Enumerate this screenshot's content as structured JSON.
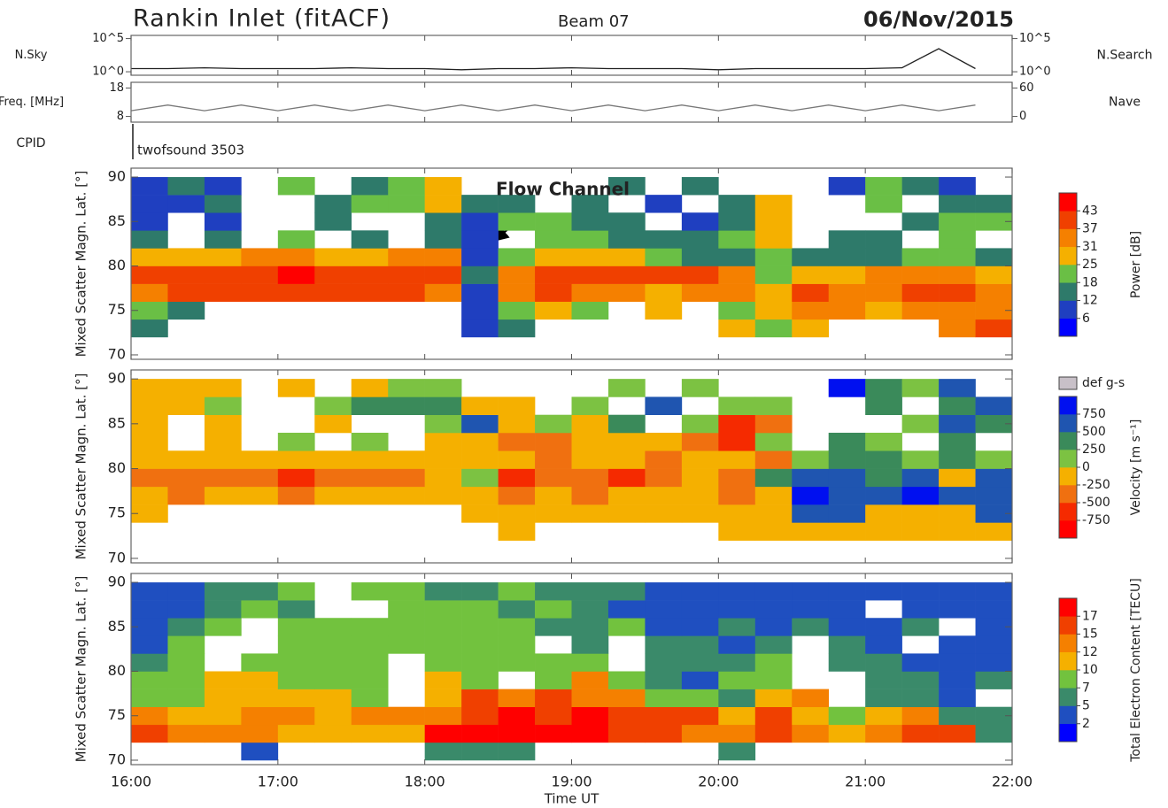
{
  "header": {
    "title": "Rankin Inlet (fitACF)",
    "beam": "Beam 07",
    "date": "06/Nov/2015"
  },
  "cpid": {
    "label": "CPID",
    "program": "twofsound 3503"
  },
  "chart_data": [
    {
      "type": "line",
      "scale": "log",
      "ylabel": "N.Sky",
      "y2label": "N.Search",
      "xlim": [
        16,
        22
      ],
      "ylim": [
        0.3,
        300000
      ],
      "yticks": [
        {
          "value": 100000,
          "label": "10^5"
        },
        {
          "value": 1,
          "label": "10^0"
        }
      ],
      "y2lim": [
        0.3,
        300000
      ],
      "y2ticks": [
        {
          "value": 100000,
          "label": "10^5"
        },
        {
          "value": 1,
          "label": "10^0"
        }
      ],
      "x": [
        16,
        16.25,
        16.5,
        16.75,
        17,
        17.25,
        17.5,
        17.75,
        18,
        18.25,
        18.5,
        18.75,
        19,
        19.25,
        19.5,
        19.75,
        20,
        20.25,
        20.5,
        20.75,
        21,
        21.25,
        21.5,
        21.75
      ],
      "series": [
        {
          "color": "#222222",
          "values": [
            3,
            3,
            4,
            3,
            3,
            3,
            4,
            3,
            3,
            2,
            3,
            3,
            4,
            3,
            3,
            3,
            2,
            3,
            3,
            3,
            3,
            4,
            3000,
            3
          ]
        }
      ]
    },
    {
      "type": "line",
      "ylabel": "Freq. [MHz]",
      "y2label": "Nave",
      "xlim": [
        16,
        22
      ],
      "ylim": [
        6,
        20
      ],
      "yticks": [
        18,
        8
      ],
      "y2lim": [
        -12,
        72
      ],
      "y2ticks": [
        60,
        0
      ],
      "x": [
        16,
        16.25,
        16.5,
        16.75,
        17,
        17.25,
        17.5,
        17.75,
        18,
        18.25,
        18.5,
        18.75,
        19,
        19.25,
        19.5,
        19.75,
        20,
        20.25,
        20.5,
        20.75,
        21,
        21.25,
        21.5,
        21.75
      ],
      "series": [
        {
          "color": "#777777",
          "values": [
            10,
            12,
            10,
            12,
            10,
            12,
            10,
            12,
            10,
            12,
            10,
            12,
            10,
            12,
            10,
            12,
            10,
            12,
            10,
            12,
            10,
            12,
            10,
            12
          ]
        }
      ]
    },
    {
      "type": "heatmap",
      "ylabel": "Mixed Scatter Magn. Lat. [°]",
      "annotation": "Flow Channel",
      "xlim": [
        16,
        22
      ],
      "ylim": [
        69.5,
        91
      ],
      "yticks": [
        70,
        75,
        80,
        85,
        90
      ],
      "x": [
        16,
        16.25,
        16.5,
        16.75,
        17,
        17.25,
        17.5,
        17.75,
        18,
        18.25,
        18.5,
        18.75,
        19,
        19.25,
        19.5,
        19.75,
        20,
        20.25,
        20.5,
        20.75,
        21,
        21.25,
        21.5,
        21.75
      ],
      "y": [
        70,
        72,
        74,
        76,
        78,
        80,
        82,
        84,
        86,
        88
      ],
      "z": [
        [
          null,
          null,
          null,
          null,
          null,
          null,
          null,
          null,
          null,
          null,
          null,
          null,
          null,
          null,
          null,
          null,
          null,
          null,
          null,
          null,
          null,
          null,
          null,
          null
        ],
        [
          12,
          null,
          null,
          null,
          null,
          null,
          null,
          null,
          null,
          8,
          12,
          null,
          null,
          null,
          null,
          null,
          25,
          18,
          25,
          null,
          null,
          null,
          31,
          37
        ],
        [
          18,
          12,
          null,
          null,
          null,
          null,
          null,
          null,
          null,
          8,
          18,
          25,
          18,
          null,
          25,
          null,
          18,
          25,
          31,
          31,
          25,
          31,
          31,
          31
        ],
        [
          31,
          37,
          37,
          37,
          37,
          37,
          37,
          37,
          31,
          8,
          31,
          37,
          31,
          31,
          25,
          31,
          31,
          25,
          37,
          31,
          31,
          37,
          37,
          31
        ],
        [
          37,
          37,
          37,
          37,
          43,
          37,
          37,
          37,
          37,
          12,
          31,
          37,
          37,
          37,
          37,
          37,
          31,
          18,
          25,
          25,
          31,
          31,
          31,
          25
        ],
        [
          25,
          25,
          25,
          31,
          31,
          25,
          25,
          31,
          31,
          6,
          18,
          25,
          25,
          25,
          18,
          12,
          12,
          18,
          12,
          12,
          12,
          18,
          18,
          12
        ],
        [
          12,
          null,
          12,
          null,
          18,
          null,
          12,
          null,
          12,
          6,
          null,
          18,
          18,
          12,
          12,
          12,
          18,
          25,
          null,
          12,
          12,
          null,
          18,
          null
        ],
        [
          6,
          null,
          6,
          null,
          null,
          12,
          null,
          null,
          12,
          6,
          18,
          18,
          12,
          12,
          null,
          6,
          12,
          25,
          null,
          null,
          null,
          12,
          18,
          18
        ],
        [
          6,
          6,
          12,
          null,
          null,
          12,
          18,
          18,
          25,
          12,
          12,
          null,
          12,
          null,
          6,
          null,
          12,
          25,
          null,
          null,
          18,
          null,
          12,
          12
        ],
        [
          6,
          12,
          6,
          null,
          18,
          null,
          12,
          18,
          25,
          null,
          null,
          null,
          null,
          12,
          null,
          12,
          null,
          null,
          null,
          6,
          18,
          12,
          6,
          null
        ]
      ],
      "colorbar": {
        "label": "Power [dB]",
        "ticks": [
          6,
          12,
          18,
          25,
          31,
          37,
          43
        ],
        "colors": [
          "#0000ff",
          "#1f3fc0",
          "#2e7a6a",
          "#6abf45",
          "#f5b000",
          "#f58000",
          "#f04000",
          "#ff0000"
        ]
      }
    },
    {
      "type": "heatmap",
      "ylabel": "Mixed Scatter Magn. Lat. [°]",
      "xlim": [
        16,
        22
      ],
      "ylim": [
        69.5,
        91
      ],
      "yticks": [
        70,
        75,
        80,
        85,
        90
      ],
      "x": [
        16,
        16.25,
        16.5,
        16.75,
        17,
        17.25,
        17.5,
        17.75,
        18,
        18.25,
        18.5,
        18.75,
        19,
        19.25,
        19.5,
        19.75,
        20,
        20.25,
        20.5,
        20.75,
        21,
        21.25,
        21.5,
        21.75
      ],
      "y": [
        70,
        72,
        74,
        76,
        78,
        80,
        82,
        84,
        86,
        88
      ],
      "z": [
        [
          null,
          null,
          null,
          null,
          null,
          null,
          null,
          null,
          null,
          null,
          null,
          null,
          null,
          null,
          null,
          null,
          null,
          null,
          null,
          null,
          null,
          null,
          null,
          null
        ],
        [
          null,
          null,
          null,
          null,
          null,
          null,
          null,
          null,
          null,
          null,
          -250,
          null,
          null,
          null,
          null,
          null,
          -250,
          -250,
          -250,
          -250,
          -250,
          -250,
          -250,
          -250
        ],
        [
          -250,
          null,
          null,
          null,
          null,
          null,
          null,
          null,
          null,
          -250,
          -250,
          -250,
          -250,
          -250,
          -250,
          -250,
          -250,
          -250,
          500,
          500,
          -250,
          -250,
          -250,
          500
        ],
        [
          -250,
          -500,
          -250,
          -250,
          -500,
          -250,
          -250,
          -250,
          -250,
          -250,
          -500,
          -250,
          -500,
          -250,
          -250,
          -250,
          -500,
          -250,
          750,
          500,
          500,
          750,
          500,
          500
        ],
        [
          -500,
          -500,
          -500,
          -500,
          -750,
          -500,
          -500,
          -500,
          -250,
          0,
          -750,
          -500,
          -500,
          -750,
          -500,
          -250,
          -500,
          250,
          500,
          500,
          250,
          500,
          -250,
          500
        ],
        [
          -250,
          -250,
          -250,
          -250,
          -250,
          -250,
          -250,
          -250,
          -250,
          -250,
          -250,
          -500,
          -250,
          -250,
          -500,
          -250,
          -250,
          -500,
          0,
          250,
          250,
          0,
          250,
          0
        ],
        [
          -250,
          null,
          -250,
          null,
          0,
          null,
          0,
          null,
          -250,
          -250,
          -500,
          -500,
          -250,
          -250,
          -250,
          -500,
          -750,
          0,
          null,
          250,
          0,
          null,
          250,
          null
        ],
        [
          -250,
          null,
          -250,
          null,
          null,
          -250,
          null,
          null,
          0,
          500,
          -250,
          0,
          -250,
          250,
          null,
          0,
          -750,
          -500,
          null,
          null,
          null,
          0,
          500,
          250
        ],
        [
          -250,
          -250,
          0,
          null,
          null,
          0,
          250,
          250,
          250,
          -250,
          -250,
          null,
          0,
          null,
          500,
          null,
          0,
          0,
          null,
          null,
          250,
          null,
          250,
          500
        ],
        [
          -250,
          -250,
          -250,
          null,
          -250,
          null,
          -250,
          0,
          0,
          null,
          null,
          null,
          null,
          0,
          null,
          0,
          null,
          null,
          null,
          750,
          250,
          0,
          500,
          null
        ]
      ],
      "legend": {
        "label": "def g-s",
        "color": "#c8c0c8"
      },
      "colorbar": {
        "label": "Velocity [m s⁻¹]",
        "ticks": [
          -750,
          -500,
          -250,
          0,
          250,
          500,
          750
        ],
        "colors": [
          "#ff0000",
          "#f52a00",
          "#f07010",
          "#f5b000",
          "#7cc242",
          "#3a8a5a",
          "#1f55b0",
          "#0010f0"
        ]
      }
    },
    {
      "type": "heatmap",
      "ylabel": "Mixed Scatter Magn. Lat. [°]",
      "xlabel": "Time UT",
      "xlim": [
        16,
        22
      ],
      "ylim": [
        69.5,
        91
      ],
      "yticks": [
        70,
        75,
        80,
        85,
        90
      ],
      "xticks": [
        {
          "value": 16,
          "label": "16:00"
        },
        {
          "value": 17,
          "label": "17:00"
        },
        {
          "value": 18,
          "label": "18:00"
        },
        {
          "value": 19,
          "label": "19:00"
        },
        {
          "value": 20,
          "label": "20:00"
        },
        {
          "value": 21,
          "label": "21:00"
        },
        {
          "value": 22,
          "label": "22:00"
        }
      ],
      "x": [
        16,
        16.25,
        16.5,
        16.75,
        17,
        17.25,
        17.5,
        17.75,
        18,
        18.25,
        18.5,
        18.75,
        19,
        19.25,
        19.5,
        19.75,
        20,
        20.25,
        20.5,
        20.75,
        21,
        21.25,
        21.5,
        21.75
      ],
      "y": [
        70,
        72,
        74,
        76,
        78,
        80,
        82,
        84,
        86,
        88
      ],
      "z": [
        [
          null,
          null,
          null,
          2,
          null,
          null,
          null,
          null,
          5,
          5,
          5,
          null,
          null,
          null,
          null,
          null,
          5,
          null,
          null,
          null,
          null,
          null,
          null,
          null
        ],
        [
          15,
          12,
          12,
          12,
          10,
          10,
          10,
          10,
          17,
          17,
          17,
          17,
          17,
          15,
          15,
          12,
          12,
          15,
          12,
          10,
          12,
          15,
          15,
          5
        ],
        [
          12,
          10,
          10,
          12,
          12,
          10,
          12,
          12,
          12,
          15,
          17,
          15,
          17,
          15,
          15,
          15,
          10,
          15,
          10,
          7,
          10,
          12,
          5,
          5
        ],
        [
          7,
          7,
          10,
          10,
          10,
          10,
          7,
          null,
          10,
          15,
          12,
          15,
          12,
          12,
          7,
          7,
          5,
          10,
          12,
          null,
          5,
          5,
          2,
          null
        ],
        [
          7,
          7,
          10,
          10,
          7,
          7,
          7,
          null,
          10,
          7,
          null,
          7,
          12,
          7,
          5,
          2,
          7,
          7,
          null,
          null,
          5,
          5,
          2,
          5
        ],
        [
          5,
          7,
          null,
          7,
          7,
          7,
          7,
          null,
          7,
          7,
          7,
          7,
          7,
          null,
          5,
          5,
          5,
          7,
          null,
          5,
          5,
          2,
          2,
          2
        ],
        [
          2,
          7,
          null,
          null,
          7,
          7,
          7,
          7,
          7,
          7,
          7,
          null,
          5,
          null,
          5,
          5,
          2,
          5,
          null,
          5,
          2,
          null,
          2,
          2
        ],
        [
          2,
          5,
          7,
          null,
          7,
          7,
          7,
          7,
          7,
          7,
          7,
          5,
          5,
          7,
          2,
          2,
          5,
          2,
          5,
          2,
          2,
          5,
          null,
          2
        ],
        [
          2,
          2,
          5,
          7,
          5,
          null,
          null,
          7,
          7,
          7,
          5,
          7,
          5,
          2,
          2,
          2,
          2,
          2,
          2,
          2,
          null,
          2,
          2,
          2
        ],
        [
          2,
          2,
          5,
          5,
          7,
          null,
          7,
          7,
          5,
          5,
          7,
          5,
          5,
          5,
          2,
          2,
          2,
          2,
          2,
          2,
          2,
          2,
          2,
          2
        ]
      ],
      "colorbar": {
        "label": "Total Electron Content [TECU]",
        "ticks": [
          2,
          5,
          7,
          10,
          12,
          15,
          17
        ],
        "colors": [
          "#0000ff",
          "#1f4fc0",
          "#3a8a6a",
          "#72c23e",
          "#f5b000",
          "#f58000",
          "#f04000",
          "#ff0000"
        ]
      }
    }
  ]
}
